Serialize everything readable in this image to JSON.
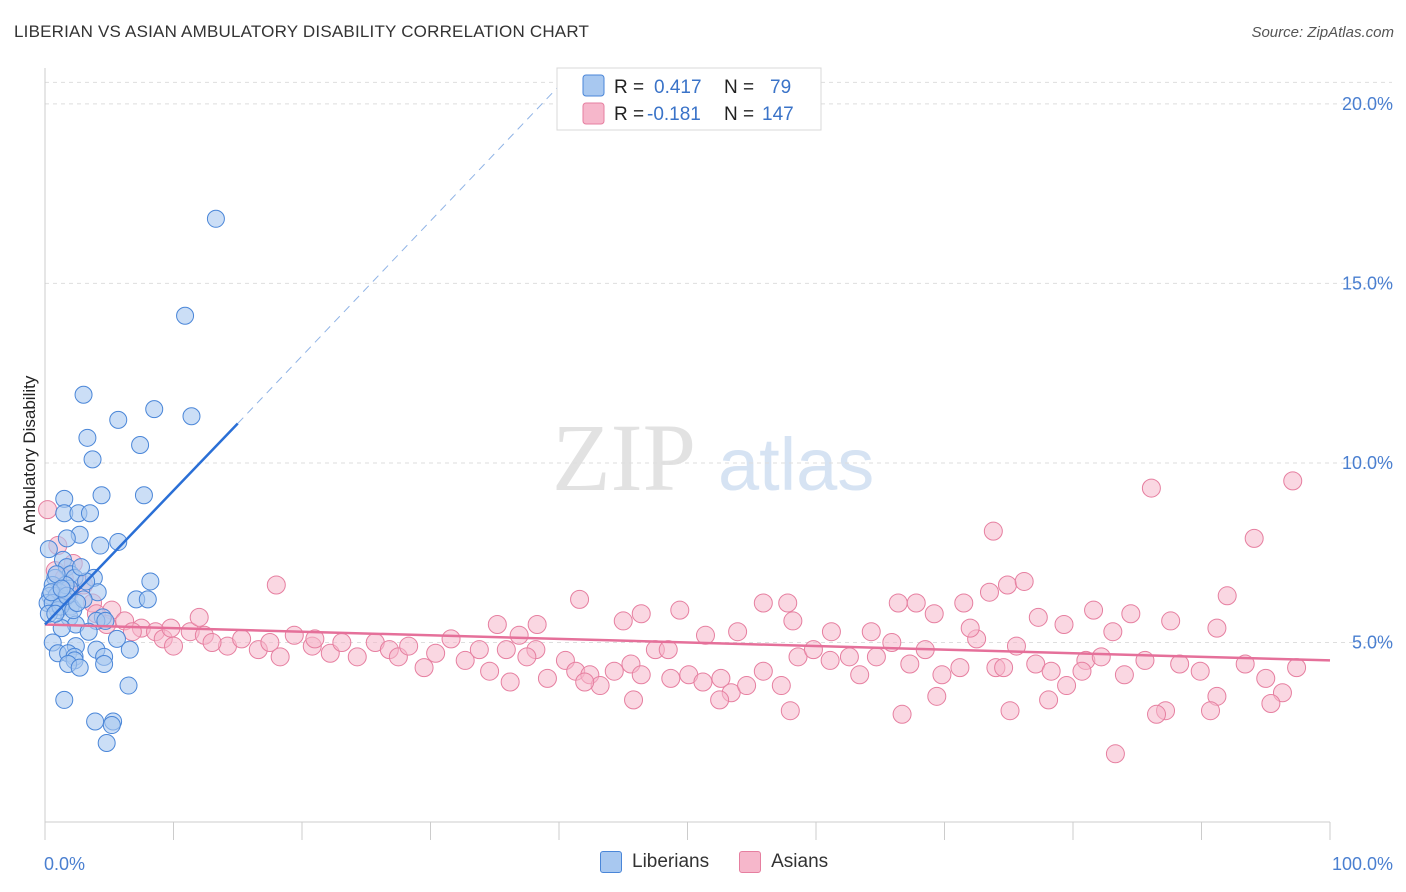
{
  "title": "LIBERIAN VS ASIAN AMBULATORY DISABILITY CORRELATION CHART",
  "source": "Source: ZipAtlas.com",
  "watermark": {
    "zip": "ZIP",
    "atlas": "atlas"
  },
  "legend_top": {
    "rows": [
      {
        "r_label": "R =",
        "r_value": "0.417",
        "n_label": "N =",
        "n_value": "79"
      },
      {
        "r_label": "R =",
        "r_value": "-0.181",
        "n_label": "N =",
        "n_value": "147"
      }
    ]
  },
  "legend_bottom": {
    "liberians": "Liberians",
    "asians": "Asians"
  },
  "colors": {
    "liberians_fill": "#a8c8f0",
    "liberians_stroke": "#4a86d8",
    "liberians_line": "#2a6fd6",
    "asians_fill": "#f6b7cb",
    "asians_stroke": "#e67fa0",
    "asians_line": "#e5709a",
    "tick_text": "#4a7fd0"
  },
  "chart_data": {
    "type": "scatter",
    "title": "LIBERIAN VS ASIAN AMBULATORY DISABILITY CORRELATION CHART",
    "xlabel": "",
    "ylabel": "Ambulatory Disability",
    "xlim": [
      0,
      100
    ],
    "ylim": [
      0,
      21
    ],
    "x_tick_labels": [
      "0.0%",
      "100.0%"
    ],
    "y_ticks": [
      5,
      10,
      15,
      20
    ],
    "y_tick_labels": [
      "5.0%",
      "10.0%",
      "15.0%",
      "20.0%"
    ],
    "grid": true,
    "legend_placement": "top-center",
    "series": [
      {
        "name": "Liberians",
        "r": 0.417,
        "n": 79,
        "trend": {
          "x": [
            0,
            15
          ],
          "y": [
            5.5,
            11.1
          ],
          "extended_to": [
            40,
            20.5
          ]
        },
        "points": [
          [
            13.3,
            16.8
          ],
          [
            10.9,
            14.1
          ],
          [
            3.0,
            11.9
          ],
          [
            5.7,
            11.2
          ],
          [
            8.5,
            11.5
          ],
          [
            11.4,
            11.3
          ],
          [
            3.3,
            10.7
          ],
          [
            7.4,
            10.5
          ],
          [
            3.7,
            10.1
          ],
          [
            4.4,
            9.1
          ],
          [
            7.7,
            9.1
          ],
          [
            1.5,
            9.0
          ],
          [
            1.5,
            8.6
          ],
          [
            2.6,
            8.6
          ],
          [
            3.5,
            8.6
          ],
          [
            2.7,
            8.0
          ],
          [
            1.7,
            7.9
          ],
          [
            5.7,
            7.8
          ],
          [
            4.3,
            7.7
          ],
          [
            0.3,
            7.6
          ],
          [
            1.4,
            7.3
          ],
          [
            1.7,
            7.1
          ],
          [
            2.0,
            6.9
          ],
          [
            0.8,
            6.8
          ],
          [
            2.3,
            6.8
          ],
          [
            3.8,
            6.8
          ],
          [
            8.2,
            6.7
          ],
          [
            0.6,
            6.6
          ],
          [
            1.9,
            6.5
          ],
          [
            1.1,
            6.4
          ],
          [
            4.1,
            6.4
          ],
          [
            0.4,
            6.3
          ],
          [
            0.9,
            6.3
          ],
          [
            7.1,
            6.2
          ],
          [
            8.0,
            6.2
          ],
          [
            1.5,
            6.2
          ],
          [
            0.2,
            6.1
          ],
          [
            0.6,
            6.1
          ],
          [
            2.0,
            6.0
          ],
          [
            1.0,
            5.9
          ],
          [
            0.3,
            5.8
          ],
          [
            1.9,
            5.7
          ],
          [
            4.5,
            5.7
          ],
          [
            4.0,
            5.6
          ],
          [
            4.7,
            5.6
          ],
          [
            2.4,
            5.5
          ],
          [
            1.3,
            5.4
          ],
          [
            3.4,
            5.3
          ],
          [
            5.6,
            5.1
          ],
          [
            0.6,
            5.0
          ],
          [
            2.4,
            4.9
          ],
          [
            4.0,
            4.8
          ],
          [
            1.0,
            4.7
          ],
          [
            1.8,
            4.7
          ],
          [
            2.3,
            4.6
          ],
          [
            4.6,
            4.6
          ],
          [
            2.3,
            4.5
          ],
          [
            4.6,
            4.4
          ],
          [
            1.8,
            4.4
          ],
          [
            2.7,
            4.3
          ],
          [
            6.6,
            4.8
          ],
          [
            6.5,
            3.8
          ],
          [
            1.5,
            3.4
          ],
          [
            3.9,
            2.8
          ],
          [
            5.3,
            2.8
          ],
          [
            5.2,
            2.7
          ],
          [
            4.8,
            2.2
          ],
          [
            1.6,
            6.6
          ],
          [
            3.2,
            6.7
          ],
          [
            0.9,
            6.9
          ],
          [
            2.8,
            7.1
          ],
          [
            1.2,
            6.0
          ],
          [
            0.5,
            6.4
          ],
          [
            2.2,
            5.9
          ],
          [
            1.7,
            6.3
          ],
          [
            0.8,
            5.8
          ],
          [
            3.0,
            6.2
          ],
          [
            1.3,
            6.5
          ],
          [
            2.5,
            6.1
          ]
        ]
      },
      {
        "name": "Asians",
        "r": -0.181,
        "n": 147,
        "trend": {
          "x": [
            0,
            100
          ],
          "y": [
            5.5,
            4.5
          ]
        },
        "points": [
          [
            0.2,
            8.7
          ],
          [
            1.0,
            7.7
          ],
          [
            0.8,
            7.0
          ],
          [
            1.5,
            6.8
          ],
          [
            2.2,
            7.2
          ],
          [
            1.9,
            6.4
          ],
          [
            3.0,
            6.6
          ],
          [
            3.7,
            6.1
          ],
          [
            5.2,
            5.9
          ],
          [
            4.0,
            5.8
          ],
          [
            4.8,
            5.5
          ],
          [
            6.2,
            5.6
          ],
          [
            7.5,
            5.4
          ],
          [
            8.6,
            5.3
          ],
          [
            9.2,
            5.1
          ],
          [
            10.0,
            4.9
          ],
          [
            11.3,
            5.3
          ],
          [
            12.4,
            5.2
          ],
          [
            14.2,
            4.9
          ],
          [
            13.0,
            5.0
          ],
          [
            15.3,
            5.1
          ],
          [
            16.6,
            4.8
          ],
          [
            17.5,
            5.0
          ],
          [
            18.3,
            4.6
          ],
          [
            19.4,
            5.2
          ],
          [
            20.8,
            4.9
          ],
          [
            22.2,
            4.7
          ],
          [
            23.1,
            5.0
          ],
          [
            24.3,
            4.6
          ],
          [
            25.7,
            5.0
          ],
          [
            26.8,
            4.8
          ],
          [
            27.5,
            4.6
          ],
          [
            28.3,
            4.9
          ],
          [
            29.5,
            4.3
          ],
          [
            30.4,
            4.7
          ],
          [
            31.6,
            5.1
          ],
          [
            32.7,
            4.5
          ],
          [
            33.8,
            4.8
          ],
          [
            34.6,
            4.2
          ],
          [
            35.9,
            4.8
          ],
          [
            36.9,
            5.2
          ],
          [
            38.2,
            4.8
          ],
          [
            39.1,
            4.0
          ],
          [
            40.5,
            4.5
          ],
          [
            41.3,
            4.2
          ],
          [
            42.4,
            4.1
          ],
          [
            43.2,
            3.8
          ],
          [
            44.3,
            4.2
          ],
          [
            45.6,
            4.4
          ],
          [
            46.4,
            4.1
          ],
          [
            47.5,
            4.8
          ],
          [
            48.7,
            4.0
          ],
          [
            50.1,
            4.1
          ],
          [
            51.2,
            3.9
          ],
          [
            52.6,
            4.0
          ],
          [
            53.4,
            3.6
          ],
          [
            54.6,
            3.8
          ],
          [
            55.9,
            4.2
          ],
          [
            57.3,
            3.8
          ],
          [
            58.6,
            4.6
          ],
          [
            59.8,
            4.8
          ],
          [
            61.1,
            4.5
          ],
          [
            62.6,
            4.6
          ],
          [
            63.4,
            4.1
          ],
          [
            64.7,
            4.6
          ],
          [
            65.9,
            5.0
          ],
          [
            67.3,
            4.4
          ],
          [
            68.5,
            4.8
          ],
          [
            69.8,
            4.1
          ],
          [
            71.2,
            4.3
          ],
          [
            72.5,
            5.1
          ],
          [
            74.0,
            4.3
          ],
          [
            75.6,
            4.9
          ],
          [
            77.1,
            4.4
          ],
          [
            78.3,
            4.2
          ],
          [
            79.5,
            3.8
          ],
          [
            81.0,
            4.5
          ],
          [
            82.2,
            4.6
          ],
          [
            84.0,
            4.1
          ],
          [
            85.6,
            4.5
          ],
          [
            87.2,
            3.1
          ],
          [
            88.3,
            4.4
          ],
          [
            89.9,
            4.2
          ],
          [
            91.2,
            3.5
          ],
          [
            93.4,
            4.4
          ],
          [
            95.0,
            4.0
          ],
          [
            96.3,
            3.6
          ],
          [
            97.4,
            4.3
          ],
          [
            80.7,
            4.2
          ],
          [
            69.4,
            3.5
          ],
          [
            66.4,
            6.1
          ],
          [
            67.8,
            6.1
          ],
          [
            69.2,
            5.8
          ],
          [
            71.5,
            6.1
          ],
          [
            73.5,
            6.4
          ],
          [
            74.9,
            6.6
          ],
          [
            76.2,
            6.7
          ],
          [
            77.3,
            5.7
          ],
          [
            79.3,
            5.5
          ],
          [
            81.6,
            5.9
          ],
          [
            83.1,
            5.3
          ],
          [
            84.5,
            5.8
          ],
          [
            87.6,
            5.6
          ],
          [
            91.2,
            5.4
          ],
          [
            73.8,
            8.1
          ],
          [
            86.1,
            9.3
          ],
          [
            94.1,
            7.9
          ],
          [
            97.1,
            9.5
          ],
          [
            92.0,
            6.3
          ],
          [
            74.6,
            4.3
          ],
          [
            38.3,
            5.5
          ],
          [
            41.6,
            6.2
          ],
          [
            45.0,
            5.6
          ],
          [
            46.4,
            5.8
          ],
          [
            49.4,
            5.9
          ],
          [
            51.4,
            5.2
          ],
          [
            53.9,
            5.3
          ],
          [
            55.9,
            6.1
          ],
          [
            57.8,
            6.1
          ],
          [
            58.2,
            5.6
          ],
          [
            61.2,
            5.3
          ],
          [
            64.3,
            5.3
          ],
          [
            35.2,
            5.5
          ],
          [
            37.5,
            4.6
          ],
          [
            48.5,
            4.8
          ],
          [
            72.0,
            5.4
          ],
          [
            36.2,
            3.9
          ],
          [
            42.0,
            3.9
          ],
          [
            45.8,
            3.4
          ],
          [
            52.5,
            3.4
          ],
          [
            58.0,
            3.1
          ],
          [
            66.7,
            3.0
          ],
          [
            75.1,
            3.1
          ],
          [
            78.1,
            3.4
          ],
          [
            86.5,
            3.0
          ],
          [
            90.7,
            3.1
          ],
          [
            95.4,
            3.3
          ],
          [
            83.3,
            1.9
          ],
          [
            12.0,
            5.7
          ],
          [
            9.8,
            5.4
          ],
          [
            18.0,
            6.6
          ],
          [
            6.8,
            5.3
          ],
          [
            21.0,
            5.1
          ]
        ]
      }
    ]
  }
}
